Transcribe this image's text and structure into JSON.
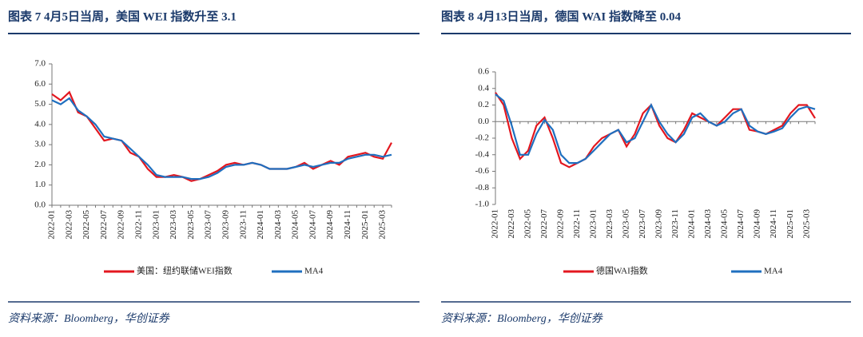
{
  "chart_data": [
    {
      "type": "line",
      "title": "图表 7   4月5日当周，美国 WEI 指数升至 3.1",
      "source": "资料来源：Bloomberg，华创证券",
      "categories": [
        "2022-01",
        null,
        "2022-03",
        null,
        "2022-05",
        null,
        "2022-07",
        null,
        "2022-09",
        null,
        "2022-11",
        null,
        "2023-01",
        null,
        "2023-03",
        null,
        "2023-05",
        null,
        "2023-07",
        null,
        "2023-09",
        null,
        "2023-11",
        null,
        "2024-01",
        null,
        "2024-03",
        null,
        "2024-05",
        null,
        "2024-07",
        null,
        "2024-09",
        null,
        "2024-11",
        null,
        "2025-01",
        null,
        "2025-03",
        null
      ],
      "series": [
        {
          "name": "美国：纽约联储WEI指数",
          "color": "#e3171f",
          "values": [
            5.5,
            5.2,
            5.6,
            4.6,
            4.4,
            3.8,
            3.2,
            3.3,
            3.2,
            2.6,
            2.4,
            1.8,
            1.4,
            1.4,
            1.5,
            1.4,
            1.2,
            1.3,
            1.5,
            1.7,
            2.0,
            2.1,
            2.0,
            2.1,
            2.0,
            1.8,
            1.8,
            1.8,
            1.9,
            2.1,
            1.8,
            2.0,
            2.2,
            2.0,
            2.4,
            2.5,
            2.6,
            2.4,
            2.3,
            3.1
          ]
        },
        {
          "name": "MA4",
          "color": "#1f6fbf",
          "values": [
            5.2,
            5.0,
            5.3,
            4.7,
            4.4,
            4.0,
            3.4,
            3.3,
            3.2,
            2.8,
            2.4,
            2.0,
            1.5,
            1.4,
            1.4,
            1.4,
            1.3,
            1.3,
            1.4,
            1.6,
            1.9,
            2.0,
            2.0,
            2.1,
            2.0,
            1.8,
            1.8,
            1.8,
            1.9,
            2.0,
            1.9,
            2.0,
            2.1,
            2.1,
            2.3,
            2.4,
            2.5,
            2.5,
            2.4,
            2.5
          ]
        }
      ],
      "ylim": [
        0,
        7
      ],
      "yticks": [
        {
          "value": 0,
          "label": "0.0"
        },
        {
          "value": 1,
          "label": "1.0"
        },
        {
          "value": 2,
          "label": "2.0"
        },
        {
          "value": 3,
          "label": "3.0"
        },
        {
          "value": 4,
          "label": "4.0"
        },
        {
          "value": 5,
          "label": "5.0"
        },
        {
          "value": 6,
          "label": "6.0"
        },
        {
          "value": 7,
          "label": "7.0"
        }
      ]
    },
    {
      "type": "line",
      "title": "图表 8   4月13日当周，德国 WAI 指数降至 0.04",
      "source": "资料来源：Bloomberg，华创证券",
      "categories": [
        "2022-01",
        null,
        "2022-03",
        null,
        "2022-05",
        null,
        "2022-07",
        null,
        "2022-09",
        null,
        "2022-11",
        null,
        "2023-01",
        null,
        "2023-03",
        null,
        "2023-05",
        null,
        "2023-07",
        null,
        "2023-09",
        null,
        "2023-11",
        null,
        "2024-01",
        null,
        "2024-03",
        null,
        "2024-05",
        null,
        "2024-07",
        null,
        "2024-09",
        null,
        "2024-11",
        null,
        "2025-01",
        null,
        "2025-03",
        null
      ],
      "series": [
        {
          "name": "德国WAI指数",
          "color": "#e3171f",
          "values": [
            0.35,
            0.2,
            -0.2,
            -0.45,
            -0.35,
            -0.05,
            0.05,
            -0.2,
            -0.5,
            -0.55,
            -0.5,
            -0.45,
            -0.3,
            -0.2,
            -0.15,
            -0.1,
            -0.3,
            -0.15,
            0.1,
            0.2,
            -0.05,
            -0.2,
            -0.25,
            -0.1,
            0.1,
            0.05,
            0.0,
            -0.05,
            0.05,
            0.15,
            0.15,
            -0.1,
            -0.12,
            -0.15,
            -0.1,
            -0.05,
            0.1,
            0.2,
            0.2,
            0.04
          ]
        },
        {
          "name": "MA4",
          "color": "#1f6fbf",
          "values": [
            0.33,
            0.25,
            -0.05,
            -0.4,
            -0.4,
            -0.15,
            0.02,
            -0.1,
            -0.4,
            -0.5,
            -0.5,
            -0.45,
            -0.35,
            -0.25,
            -0.15,
            -0.1,
            -0.25,
            -0.2,
            0.0,
            0.2,
            0.0,
            -0.15,
            -0.25,
            -0.15,
            0.05,
            0.1,
            0.0,
            -0.05,
            0.0,
            0.1,
            0.15,
            -0.05,
            -0.12,
            -0.15,
            -0.12,
            -0.08,
            0.05,
            0.15,
            0.18,
            0.15
          ]
        }
      ],
      "ylim": [
        -1,
        0.6
      ],
      "yticks": [
        {
          "value": -1,
          "label": "-1.0"
        },
        -0.8,
        -0.6,
        -0.4,
        -0.2,
        {
          "value": 0,
          "label": "0.0"
        },
        0.2,
        0.4,
        0.6
      ]
    }
  ]
}
